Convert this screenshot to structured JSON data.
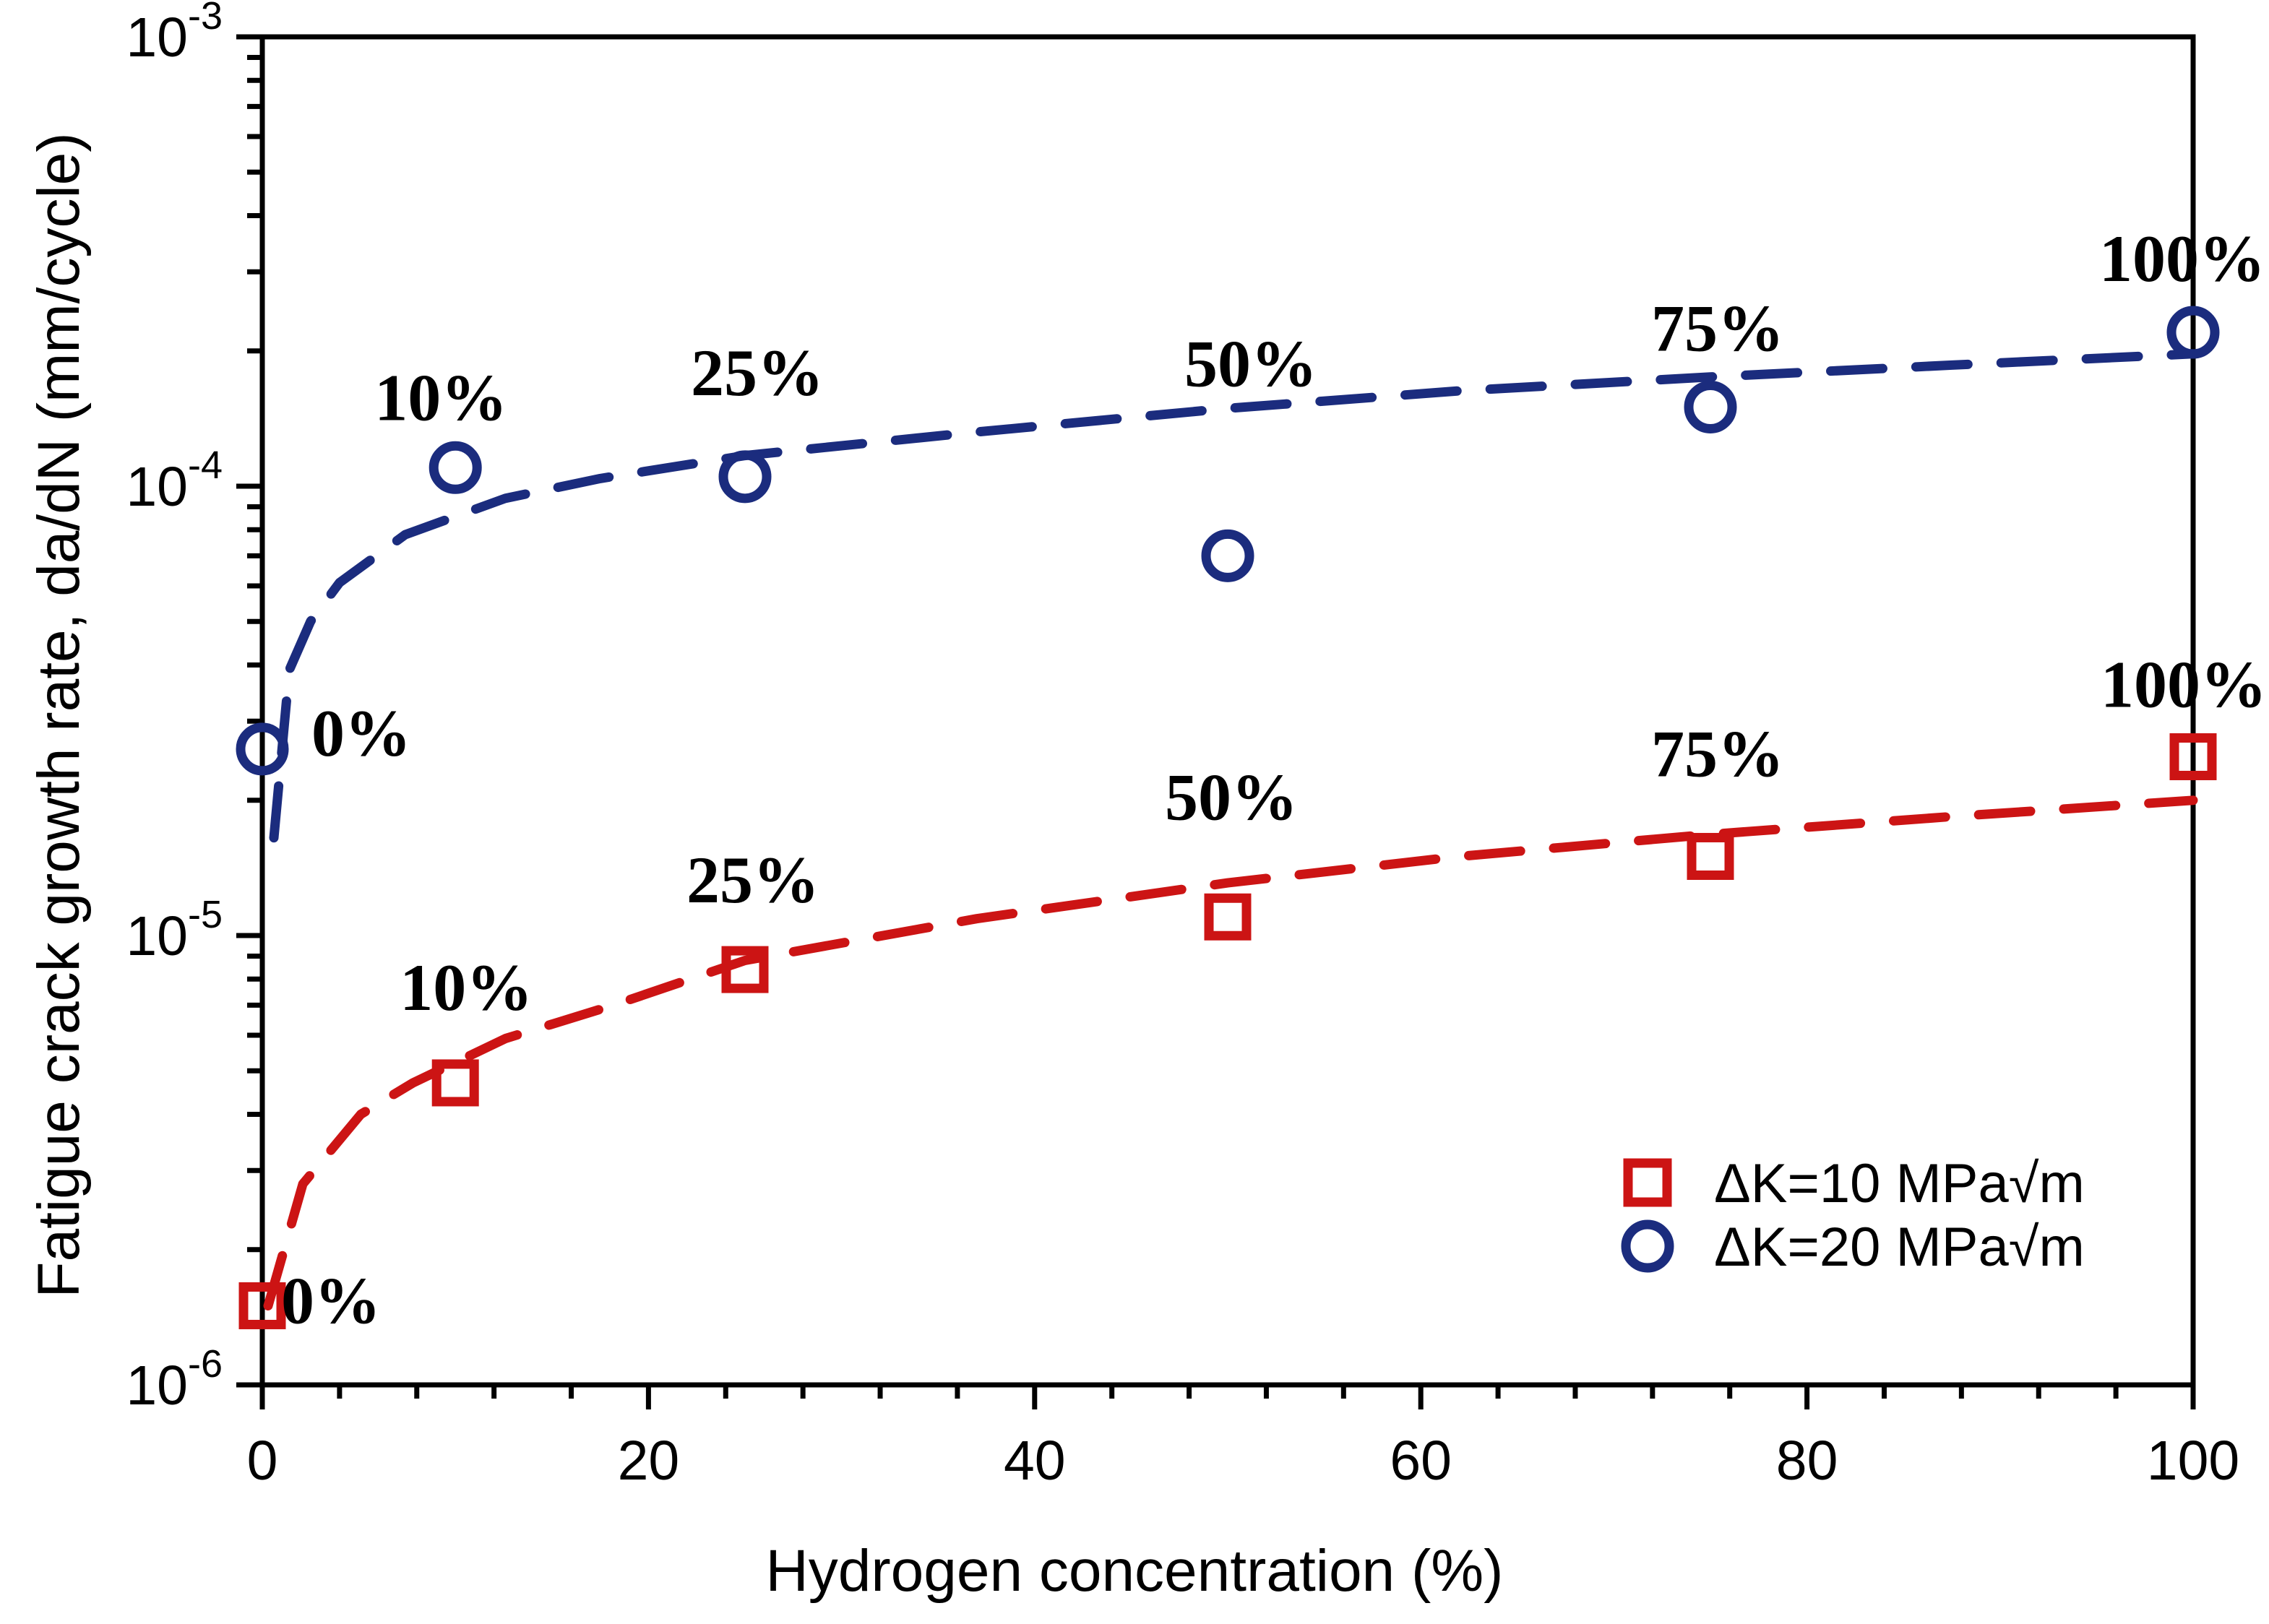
{
  "axes": {
    "x": {
      "title": "Hydrogen concentration (%)",
      "tick_values": [
        0,
        20,
        40,
        60,
        80,
        100
      ],
      "tick_labels": [
        "0",
        "20",
        "40",
        "60",
        "80",
        "100"
      ],
      "minor_step": 4,
      "range": [
        0,
        100
      ]
    },
    "y": {
      "title": "Fatigue crack growth rate, da/dN (mm/cycle)",
      "tick_labels": [
        {
          "base": "10",
          "exp": "-3"
        },
        {
          "base": "10",
          "exp": "-4"
        },
        {
          "base": "10",
          "exp": "-5"
        },
        {
          "base": "10",
          "exp": "-6"
        }
      ],
      "scale": "log",
      "range_exponents": [
        -6,
        -3
      ]
    }
  },
  "legend": {
    "items": [
      {
        "label": "ΔK=10 MPa√m",
        "marker": "square",
        "color": "#cc1414"
      },
      {
        "label": "ΔK=20 MPa√m",
        "marker": "circle",
        "color": "#1b2c7e"
      }
    ]
  },
  "chart_data": {
    "type": "scatter",
    "title": "",
    "xlabel": "Hydrogen concentration (%)",
    "ylabel": "Fatigue crack growth rate, da/dN (mm/cycle)",
    "x_range": [
      0,
      100
    ],
    "y_range": [
      1e-06,
      0.001
    ],
    "y_scale": "log",
    "grid": false,
    "legend_position": "lower right",
    "series": [
      {
        "name": "ΔK=10 MPa√m",
        "marker": "square",
        "color": "#cc1414",
        "line_style": "dashed",
        "x": [
          0,
          10,
          25,
          50,
          75,
          100
        ],
        "y": [
          1.5e-06,
          4.7e-06,
          8.4e-06,
          1.1e-05,
          1.5e-05,
          2.5e-05
        ],
        "point_labels": [
          "0%",
          "10%",
          "25%",
          "50%",
          "75%",
          "100%"
        ],
        "trend": [
          [
            0.3,
            1.5e-06
          ],
          [
            2.1,
            2.8e-06
          ],
          [
            5.1,
            4e-06
          ],
          [
            7.8,
            4.7e-06
          ],
          [
            12.6,
            5.9e-06
          ],
          [
            18.2,
            7e-06
          ],
          [
            25,
            8.8e-06
          ],
          [
            37,
            1.09e-05
          ],
          [
            50,
            1.31e-05
          ],
          [
            62,
            1.5e-05
          ],
          [
            75,
            1.68e-05
          ],
          [
            87.5,
            1.84e-05
          ],
          [
            100,
            2e-05
          ]
        ]
      },
      {
        "name": "ΔK=20 MPa√m",
        "marker": "circle",
        "color": "#1b2c7e",
        "line_style": "dashed",
        "x": [
          0,
          10,
          25,
          50,
          75,
          100
        ],
        "y": [
          2.6e-05,
          0.00011,
          0.000105,
          7e-05,
          0.00015,
          0.00022
        ],
        "point_labels": [
          "0%",
          "10%",
          "25%",
          "50%",
          "75%",
          "100%"
        ],
        "trend": [
          [
            0.6,
            1.65e-05
          ],
          [
            1.4,
            3.9e-05
          ],
          [
            2.5,
            5e-05
          ],
          [
            4,
            6.1e-05
          ],
          [
            7.4,
            7.8e-05
          ],
          [
            12.6,
            9.4e-05
          ],
          [
            17.5,
            0.000104
          ],
          [
            25,
            0.000117
          ],
          [
            37,
            0.000132
          ],
          [
            50,
            0.000149
          ],
          [
            62,
            0.000163
          ],
          [
            75,
            0.000175
          ],
          [
            87.5,
            0.000186
          ],
          [
            100,
            0.000197
          ]
        ]
      }
    ]
  }
}
